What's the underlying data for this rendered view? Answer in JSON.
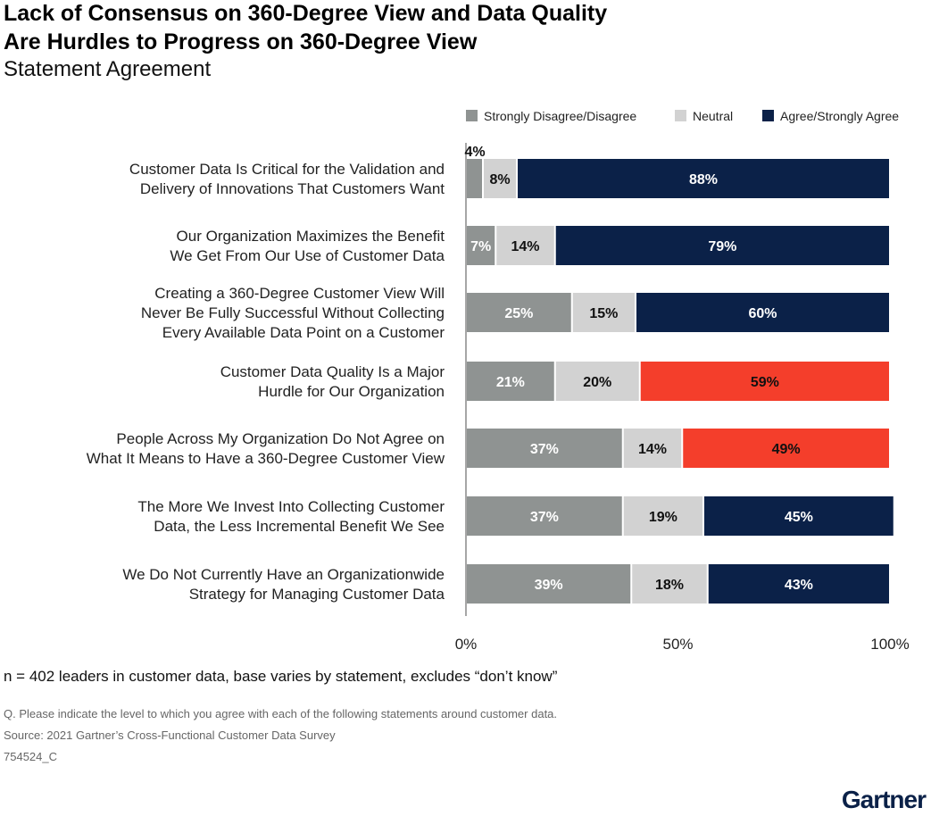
{
  "title_line1": "Lack of Consensus on 360-Degree View and Data Quality",
  "title_line2": "Are Hurdles to Progress on 360-Degree View",
  "subtitle": "Statement Agreement",
  "note": "n = 402 leaders in customer data, base varies by statement, excludes “don’t know”",
  "question": "Q. Please indicate the level to which you agree with each of the following statements around customer data.",
  "source": "Source: 2021 Gartner’s Cross-Functional Customer Data Survey",
  "code": "754524_C",
  "logo": "Gartner",
  "colors": {
    "disagree": "#8f9392",
    "neutral": "#d2d2d2",
    "agree": "#0b2148",
    "highlight": "#f43e2b"
  },
  "chart_data": {
    "type": "bar",
    "orientation": "horizontal-stacked",
    "legend_position": "top-right",
    "xlim": [
      0,
      100
    ],
    "x_ticks": [
      "0%",
      "50%",
      "100%"
    ],
    "series": [
      {
        "name": "Strongly Disagree/Disagree",
        "values": [
          4,
          7,
          25,
          21,
          37,
          37,
          39
        ]
      },
      {
        "name": "Neutral",
        "values": [
          8,
          14,
          15,
          20,
          14,
          19,
          18
        ]
      },
      {
        "name": "Agree/Strongly Agree",
        "values": [
          88,
          79,
          60,
          59,
          49,
          45,
          43
        ]
      }
    ],
    "highlighted_rows": [
      3,
      4
    ],
    "categories": [
      [
        "Customer Data Is Critical for the Validation and",
        "Delivery of Innovations That Customers Want"
      ],
      [
        "Our Organization Maximizes the Benefit",
        "We Get From Our Use of Customer Data"
      ],
      [
        "Creating a 360-Degree Customer View Will",
        "Never Be Fully Successful Without Collecting",
        "Every Available Data Point on a Customer"
      ],
      [
        "Customer Data Quality Is a Major",
        "Hurdle for Our Organization"
      ],
      [
        "People Across My Organization Do Not Agree on",
        "What It Means to Have a 360-Degree Customer View"
      ],
      [
        "The More We Invest Into Collecting Customer",
        "Data, the Less Incremental Benefit We See"
      ],
      [
        "We Do Not Currently Have an Organizationwide",
        "Strategy for Managing Customer Data"
      ]
    ]
  }
}
